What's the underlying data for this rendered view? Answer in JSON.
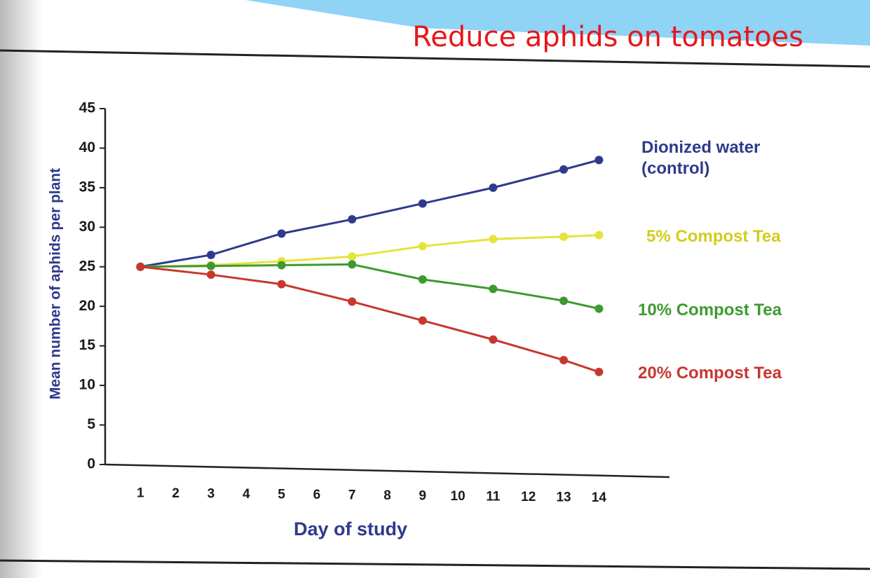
{
  "title": "Reduce aphids on tomatoes",
  "chart_data": {
    "type": "line",
    "xlabel": "Day of study",
    "ylabel": "Mean number of aphids per plant",
    "x": [
      1,
      3,
      5,
      7,
      9,
      11,
      13,
      14
    ],
    "xlim": [
      0,
      16
    ],
    "xticks": [
      1,
      2,
      3,
      4,
      5,
      6,
      7,
      8,
      9,
      10,
      11,
      12,
      13,
      14
    ],
    "ylim": [
      0,
      45
    ],
    "yticks": [
      0,
      5,
      10,
      15,
      20,
      25,
      30,
      35,
      40,
      45
    ],
    "series": [
      {
        "name": "Dionized water (control)",
        "color": "#2e3a8c",
        "values": [
          25,
          26.5,
          29.2,
          31,
          33,
          35,
          37.3,
          38.5
        ]
      },
      {
        "name": "5%  Compost Tea",
        "color": "#e6e33a",
        "values": [
          25,
          25.2,
          25.7,
          26.3,
          27.6,
          28.5,
          28.8,
          29
        ]
      },
      {
        "name": "10% Compost Tea",
        "color": "#3d9a30",
        "values": [
          25,
          25.1,
          25.2,
          25.3,
          23.4,
          22.2,
          20.7,
          19.7
        ]
      },
      {
        "name": "20% Compost Tea",
        "color": "#c8372f",
        "values": [
          25,
          24,
          22.8,
          20.6,
          18.2,
          15.8,
          13.2,
          11.7
        ]
      }
    ]
  }
}
